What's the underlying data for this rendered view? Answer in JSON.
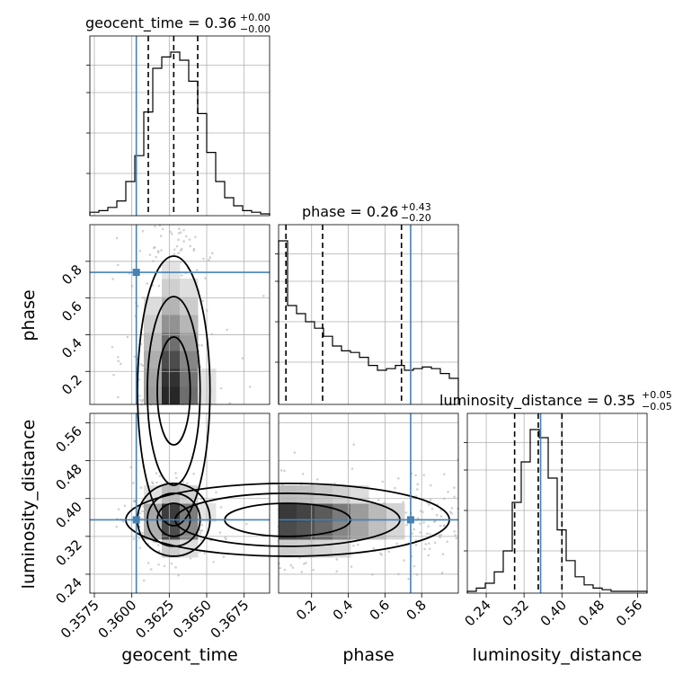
{
  "chart_data": {
    "type": "corner",
    "parameters": [
      "geocent_time",
      "phase",
      "luminosity_distance"
    ],
    "titles": [
      {
        "param": "geocent_time",
        "prefix": "geocent_time = 0.36",
        "upper": "+0.00",
        "lower": "−0.00"
      },
      {
        "param": "phase",
        "prefix": "phase = 0.26",
        "upper": "+0.43",
        "lower": "−0.20"
      },
      {
        "param": "luminosity_distance",
        "prefix": "luminosity_distance = 0.35",
        "upper": "+0.05",
        "lower": "−0.05"
      }
    ],
    "axis_labels": {
      "x": [
        "geocent_time",
        "phase",
        "luminosity_distance"
      ],
      "y": [
        "phase",
        "luminosity_distance"
      ]
    },
    "ranges": {
      "geocent_time": [
        0.3572,
        0.3692
      ],
      "phase": [
        0.02,
        1.0
      ],
      "luminosity_distance": [
        0.2,
        0.58
      ]
    },
    "ticks": {
      "geocent_time": [
        0.3575,
        0.36,
        0.3625,
        0.365,
        0.3675
      ],
      "phase": [
        0.2,
        0.4,
        0.6,
        0.8
      ],
      "luminosity_distance": [
        0.24,
        0.32,
        0.4,
        0.48,
        0.56
      ]
    },
    "tick_labels": {
      "geocent_time": [
        "0.3575",
        "0.3600",
        "0.3625",
        "0.3650",
        "0.3675"
      ],
      "phase": [
        "0.2",
        "0.4",
        "0.6",
        "0.8"
      ],
      "luminosity_distance": [
        "0.24",
        "0.32",
        "0.40",
        "0.48",
        "0.56"
      ]
    },
    "truths": {
      "geocent_time": 0.3603,
      "phase": 0.74,
      "luminosity_distance": 0.355
    },
    "quantiles": {
      "geocent_time": [
        0.3611,
        0.3628,
        0.3644
      ],
      "phase": [
        0.06,
        0.26,
        0.69
      ],
      "luminosity_distance": [
        0.3,
        0.35,
        0.4
      ]
    },
    "histograms": {
      "geocent_time": {
        "edges_start": 0.3572,
        "bin_width": 0.0006,
        "counts": [
          1,
          2,
          4,
          8,
          20,
          36,
          63,
          90,
          97,
          100,
          95,
          82,
          62,
          38,
          20,
          10,
          5,
          2,
          1,
          0
        ]
      },
      "phase": {
        "edges_start": 0.02,
        "bin_width": 0.049,
        "counts": [
          100,
          60,
          55,
          50,
          46,
          41,
          35,
          32,
          31,
          28,
          23,
          20,
          21,
          23,
          20,
          21,
          22,
          21,
          18,
          15
        ]
      },
      "luminosity_distance": {
        "edges_start": 0.2,
        "bin_width": 0.019,
        "counts": [
          0,
          2,
          5,
          12,
          25,
          55,
          80,
          100,
          95,
          70,
          38,
          19,
          9,
          4,
          2,
          1,
          0,
          0,
          0,
          0
        ]
      }
    },
    "grid": true
  }
}
